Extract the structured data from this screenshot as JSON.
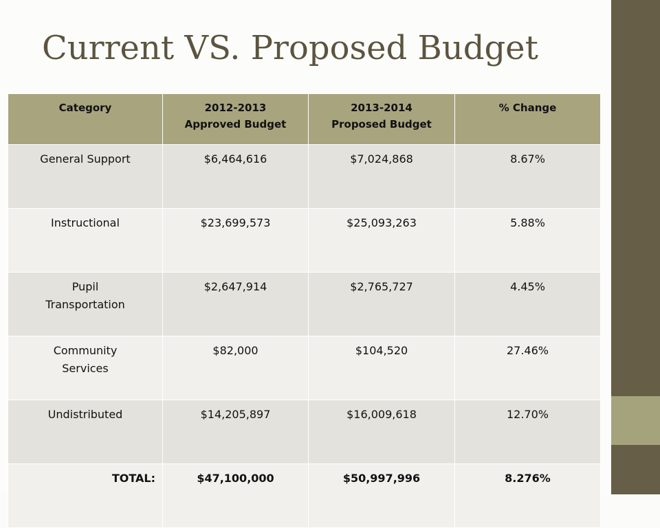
{
  "slide": {
    "title": "Current VS. Proposed Budget"
  },
  "table": {
    "headers": [
      {
        "line1": "Category",
        "line2": ""
      },
      {
        "line1": "2012-2013",
        "line2": "Approved Budget"
      },
      {
        "line1": "2013-2014",
        "line2": "Proposed Budget"
      },
      {
        "line1": "% Change",
        "line2": ""
      }
    ],
    "rows": [
      {
        "category_line1": "General Support",
        "category_line2": "",
        "approved": "$6,464,616",
        "proposed": "$7,024,868",
        "change": "8.67%"
      },
      {
        "category_line1": "Instructional",
        "category_line2": "",
        "approved": "$23,699,573",
        "proposed": "$25,093,263",
        "change": "5.88%"
      },
      {
        "category_line1": "Pupil",
        "category_line2": "Transportation",
        "approved": "$2,647,914",
        "proposed": "$2,765,727",
        "change": "4.45%"
      },
      {
        "category_line1": "Community",
        "category_line2": "Services",
        "approved": "$82,000",
        "proposed": "$104,520",
        "change": "27.46%"
      },
      {
        "category_line1": "Undistributed",
        "category_line2": "",
        "approved": "$14,205,897",
        "proposed": "$16,009,618",
        "change": "12.70%"
      }
    ],
    "total": {
      "label": "TOTAL:",
      "approved": "$47,100,000",
      "proposed": "$50,997,996",
      "change": "8.276%"
    }
  },
  "colors": {
    "header_bg": "#a8a47e",
    "side_bar": "#675e47",
    "side_accent": "#a5a37c",
    "title_text": "#5b5440"
  }
}
